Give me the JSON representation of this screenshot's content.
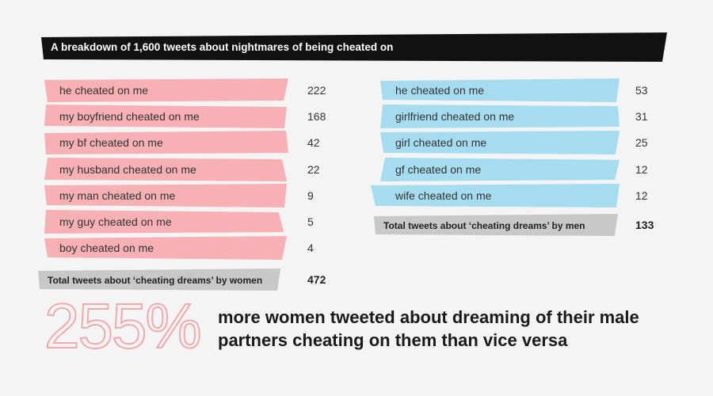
{
  "banner": {
    "title": "A breakdown of 1,600 tweets about nightmares of being cheated on"
  },
  "colors": {
    "women": "#f7b0b3",
    "men": "#a6dcef",
    "total": "#c8c8c8",
    "banner": "#111111",
    "accent_outline": "#f3a9ac"
  },
  "chart_data": [
    {
      "type": "table",
      "group": "women",
      "categories": [
        "he cheated on me",
        "my boyfriend cheated on me",
        "my bf cheated on me",
        "my husband cheated on me",
        "my man cheated on me",
        "my guy cheated on me",
        "boy cheated on me"
      ],
      "values": [
        222,
        168,
        42,
        22,
        9,
        5,
        4
      ],
      "total_label": "Total tweets about ‘cheating dreams’ by women",
      "total_value": 472
    },
    {
      "type": "table",
      "group": "men",
      "categories": [
        "he cheated on me",
        "girlfriend cheated on me",
        "girl cheated on me",
        "gf cheated on me",
        "wife cheated on me"
      ],
      "values": [
        53,
        31,
        25,
        12,
        12
      ],
      "total_label": "Total tweets about ‘cheating dreams’ by men",
      "total_value": 133
    }
  ],
  "callout": {
    "percent": "255%",
    "text": "more women tweeted about dreaming of their male partners cheating on them than vice versa"
  }
}
